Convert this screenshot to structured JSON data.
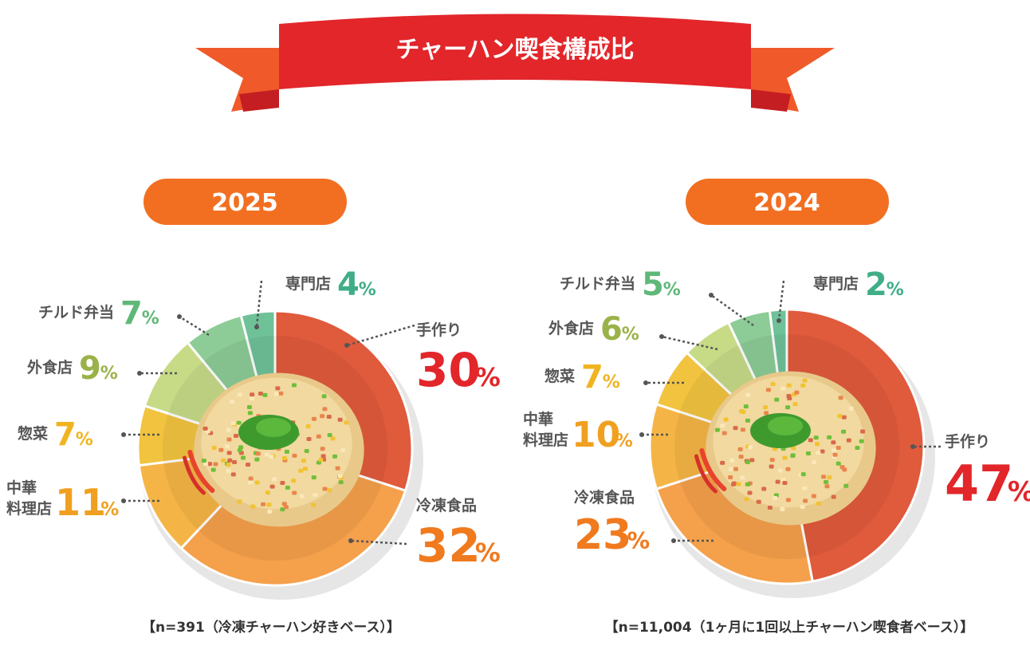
{
  "title": "チャーハン喫食構成比",
  "colors": {
    "ribbon": "#e2262a",
    "ribbon_tail": "#f05a2a",
    "pill": "#f26f22",
    "teku": "#e05a3c",
    "reitou": "#f5a04b",
    "chuka": "#f5b546",
    "souzai": "#f2c33f",
    "gaishoku": "#c7db87",
    "chilled": "#8dcc96",
    "senmon": "#6fc198"
  },
  "chart_data": [
    {
      "type": "pie",
      "year": "2025",
      "note": "【n=391（冷凍チャーハン好きベース）】",
      "slices": [
        {
          "label": "手作り",
          "value": 30,
          "color_key": "teku",
          "text_color": "#e2262a"
        },
        {
          "label": "冷凍食品",
          "value": 32,
          "color_key": "reitou",
          "text_color": "#f07a1e"
        },
        {
          "label": "中華料理店",
          "value": 11,
          "color_key": "chuka",
          "text_color": "#f0a020"
        },
        {
          "label": "惣菜",
          "value": 7,
          "color_key": "souzai",
          "text_color": "#f0b420"
        },
        {
          "label": "外食店",
          "value": 9,
          "color_key": "gaishoku",
          "text_color": "#9ab24a"
        },
        {
          "label": "チルド弁当",
          "value": 7,
          "color_key": "chilled",
          "text_color": "#5fb878"
        },
        {
          "label": "専門店",
          "value": 4,
          "color_key": "senmon",
          "text_color": "#3fae86"
        }
      ]
    },
    {
      "type": "pie",
      "year": "2024",
      "note": "【n=11,004（1ヶ月に1回以上チャーハン喫食者ベース）】",
      "slices": [
        {
          "label": "手作り",
          "value": 47,
          "color_key": "teku",
          "text_color": "#e2262a"
        },
        {
          "label": "冷凍食品",
          "value": 23,
          "color_key": "reitou",
          "text_color": "#f07a1e"
        },
        {
          "label": "中華料理店",
          "value": 10,
          "color_key": "chuka",
          "text_color": "#f0a020"
        },
        {
          "label": "惣菜",
          "value": 7,
          "color_key": "souzai",
          "text_color": "#f0b420"
        },
        {
          "label": "外食店",
          "value": 6,
          "color_key": "gaishoku",
          "text_color": "#9ab24a"
        },
        {
          "label": "チルド弁当",
          "value": 5,
          "color_key": "chilled",
          "text_color": "#5fb878"
        },
        {
          "label": "専門店",
          "value": 2,
          "color_key": "senmon",
          "text_color": "#3fae86"
        }
      ]
    }
  ]
}
